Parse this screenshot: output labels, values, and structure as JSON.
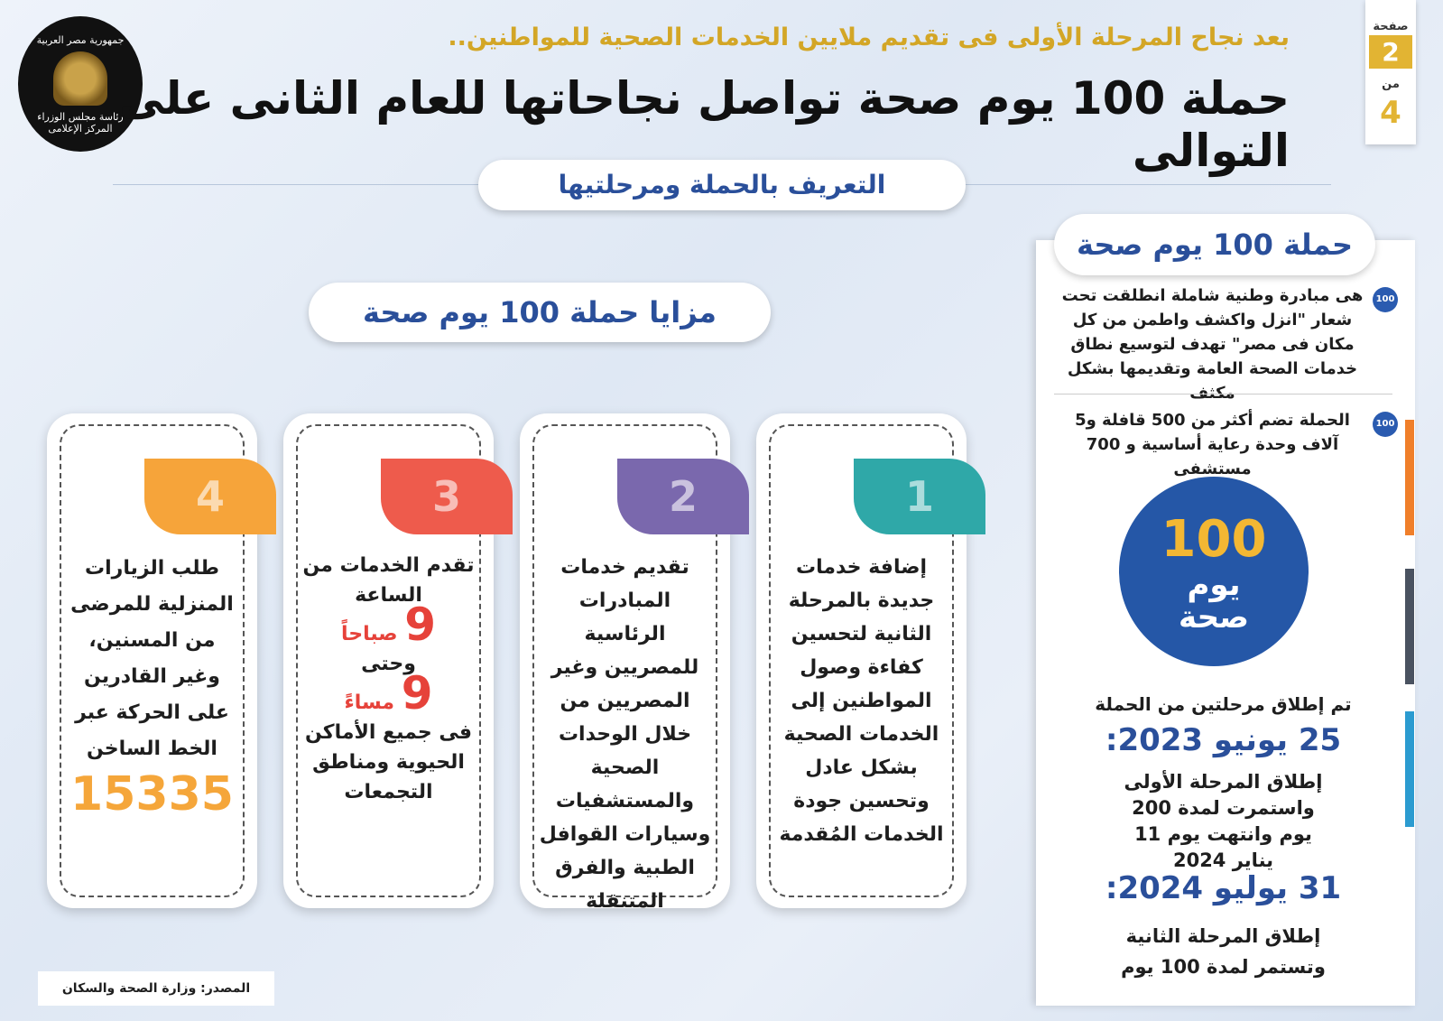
{
  "header": {
    "subtitle": "بعد نجاح المرحلة الأولى فى تقديم ملايين الخدمات الصحية للمواطنين..",
    "title": "حملة 100 يوم صحة تواصل نجاحاتها للعام الثانى على التوالى"
  },
  "logo": {
    "top": "جمهورية مصر العربية",
    "middle": "رئاسة مجلس الوزراء",
    "bottom": "المركز الإعلامى"
  },
  "pager": {
    "page_label": "صفحة",
    "page": "2",
    "of_label": "من",
    "total": "4"
  },
  "intro_label": "التعريف بالحملة ومرحلتيها",
  "advantages_label": "مزايا حملة 100 يوم صحة",
  "panel": {
    "title": "حملة 100 يوم صحة",
    "bullets": [
      "هى مبادرة وطنية شاملة انطلقت تحت شعار \"انزل واكشف واطمن من كل مكان فى مصر\" تهدف لتوسيع نطاق خدمات الصحة العامة وتقديمها بشكل مكثف",
      "الحملة تضم أكثر من 500 قافلة و5 آلاف وحدة رعاية أساسية و 700 مستشفى"
    ],
    "campaign_logo": {
      "number": "100",
      "line1": "يوم",
      "line2": "صحة"
    },
    "phases_intro": "تم إطلاق مرحلتين من الحملة",
    "phases": [
      {
        "date": "25 يونيو 2023:",
        "text": "إطلاق المرحلة الأولى واستمرت لمدة 200 يوم وانتهت يوم 11 يناير 2024"
      },
      {
        "date": "31 يوليو 2024:",
        "text": "إطلاق المرحلة الثانية وتستمر لمدة 100 يوم"
      }
    ],
    "accent_colors": [
      "#f07f2a",
      "#4a5260",
      "#2b9bd0"
    ]
  },
  "cards": [
    {
      "number": "1",
      "color": "#2fa8a8",
      "text": "إضافة خدمات جديدة بالمرحلة الثانية لتحسين كفاءة وصول المواطنين إلى الخدمات الصحية بشكل عادل وتحسين جودة الخدمات المُقدمة"
    },
    {
      "number": "2",
      "color": "#7a68ad",
      "text": "تقديم خدمات المبادرات الرئاسية للمصريين وغير المصريين من خلال الوحدات الصحية والمستشفيات وسيارات القوافل الطبية والفرق المتنقلة"
    },
    {
      "number": "3",
      "color": "#ee5b4c",
      "text_a": "تقدم الخدمات من الساعة",
      "hour1": "9",
      "period1": "صباحاً",
      "text_b": "وحتى",
      "hour2": "9",
      "period2": "مساءً",
      "text_c": "فى جميع الأماكن الحيوية ومناطق التجمعات"
    },
    {
      "number": "4",
      "color": "#f6a43a",
      "text": "طلب الزيارات المنزلية للمرضى من المسنين، وغير القادرين على الحركة عبر الخط الساخن",
      "hotline": "15335"
    }
  ],
  "source": "المصدر: وزارة الصحة والسكان"
}
